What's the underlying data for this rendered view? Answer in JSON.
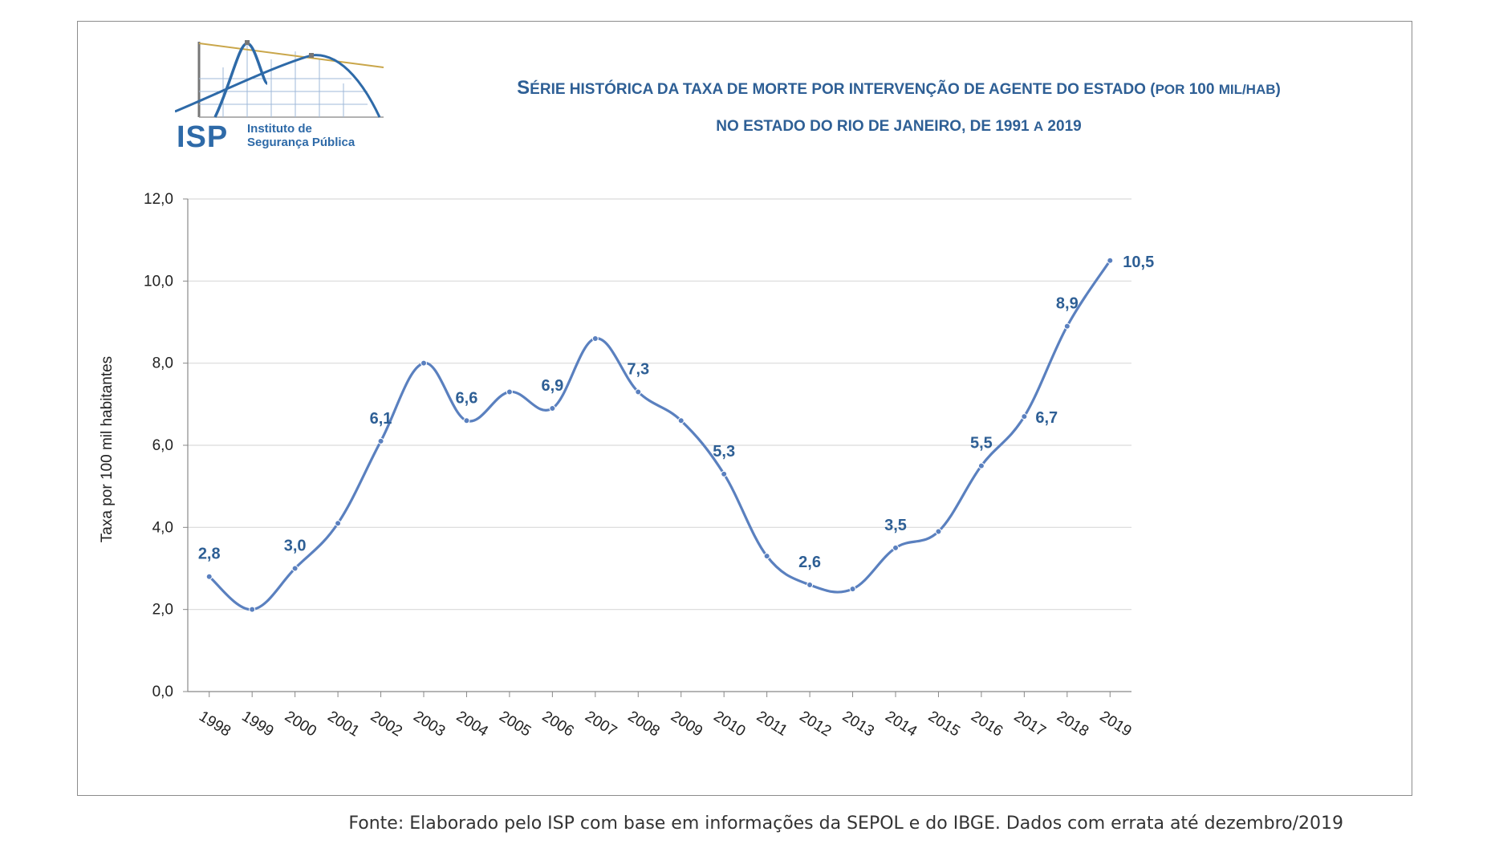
{
  "header": {
    "logo_abbr": "ISP",
    "logo_name_line1": "Instituto de",
    "logo_name_line2": "Segurança Pública",
    "title_line1_a": "S",
    "title_line1_b": "ÉRIE HISTÓRICA DA TAXA DE MORTE POR INTERVENÇÃO DE AGENTE DO ESTADO (",
    "title_line1_c": "POR",
    "title_line1_d": " 100 ",
    "title_line1_e": "MIL/HAB",
    "title_line1_f": ")",
    "title_line2_a": "NO ESTADO DO RIO DE JANEIRO, DE 1991 ",
    "title_line2_b": "A",
    "title_line2_c": " 2019"
  },
  "footer": {
    "source": "Fonte: Elaborado pelo ISP com base em informações da SEPOL e do IBGE. Dados com errata até dezembro/2019"
  },
  "colors": {
    "line": "#5a80bf",
    "label": "#2e5f95",
    "grid": "#d9d9d9",
    "title": "#2e5f95"
  },
  "chart_data": {
    "type": "line",
    "ylabel": "Taxa por 100 mil habitantes",
    "xlabel": "",
    "ylim": [
      0,
      12
    ],
    "yticks": [
      "0,0",
      "2,0",
      "4,0",
      "6,0",
      "8,0",
      "10,0",
      "12,0"
    ],
    "grid": true,
    "smooth": true,
    "categories": [
      "1998",
      "1999",
      "2000",
      "2001",
      "2002",
      "2003",
      "2004",
      "2005",
      "2006",
      "2007",
      "2008",
      "2009",
      "2010",
      "2011",
      "2012",
      "2013",
      "2014",
      "2015",
      "2016",
      "2017",
      "2018",
      "2019"
    ],
    "series": [
      {
        "values": [
          2.8,
          2.0,
          3.0,
          4.1,
          6.1,
          8.0,
          6.6,
          7.3,
          6.9,
          8.6,
          7.3,
          6.6,
          5.3,
          3.3,
          2.6,
          2.5,
          3.5,
          3.9,
          5.5,
          6.7,
          8.9,
          10.5
        ],
        "data_labels": [
          "2,8",
          null,
          "3,0",
          null,
          "6,1",
          null,
          "6,6",
          null,
          "6,9",
          null,
          "7,3",
          null,
          "5,3",
          null,
          "2,6",
          null,
          "3,5",
          null,
          "5,5",
          "6,7",
          "8,9",
          "10,5"
        ]
      }
    ]
  }
}
